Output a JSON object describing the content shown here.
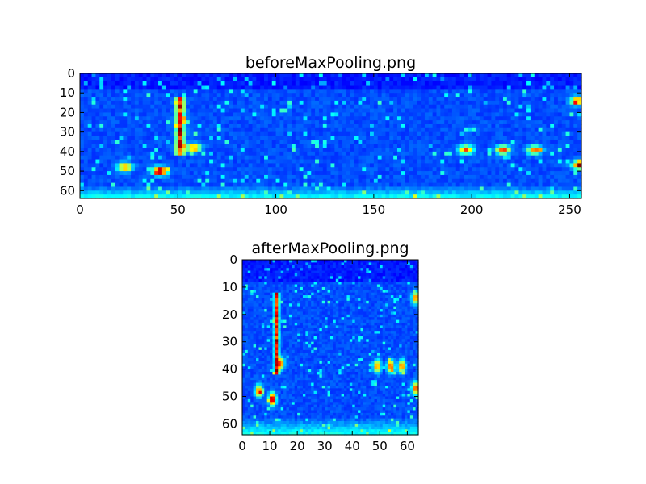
{
  "chart_data": [
    {
      "type": "heatmap",
      "title": "beforeMaxPooling.png",
      "xlabel": "",
      "ylabel": "",
      "xlim": [
        0,
        256
      ],
      "ylim": [
        64,
        0
      ],
      "xticks": [
        "0",
        "50",
        "100",
        "150",
        "200",
        "250"
      ],
      "yticks": [
        "0",
        "10",
        "20",
        "30",
        "40",
        "50",
        "60"
      ],
      "colormap": "jet",
      "grid": false,
      "features": [
        {
          "x": 51,
          "y_start": 12,
          "y_end": 42,
          "intensity": 0.75,
          "type": "vertical-line"
        },
        {
          "x": 41,
          "y": 50,
          "intensity": 0.85,
          "type": "blob"
        },
        {
          "x": 23,
          "y": 48,
          "intensity": 0.6,
          "type": "blob"
        },
        {
          "x": 58,
          "y": 38,
          "intensity": 0.6,
          "type": "blob"
        },
        {
          "x": 197,
          "y": 39,
          "intensity": 0.6,
          "type": "blob"
        },
        {
          "x": 216,
          "y": 39,
          "intensity": 0.65,
          "type": "blob"
        },
        {
          "x": 232,
          "y": 39,
          "intensity": 0.6,
          "type": "blob"
        },
        {
          "x": 254,
          "y": 14,
          "intensity": 0.6,
          "type": "blob"
        },
        {
          "x": 255,
          "y": 47,
          "intensity": 0.7,
          "type": "blob"
        }
      ]
    },
    {
      "type": "heatmap",
      "title": "afterMaxPooling.png",
      "xlabel": "",
      "ylabel": "",
      "xlim": [
        0,
        64
      ],
      "ylim": [
        64,
        0
      ],
      "xticks": [
        "0",
        "10",
        "20",
        "30",
        "40",
        "50",
        "60"
      ],
      "yticks": [
        "0",
        "10",
        "20",
        "30",
        "40",
        "50",
        "60"
      ],
      "colormap": "jet",
      "grid": false,
      "features": [
        {
          "x": 12.5,
          "y_start": 12,
          "y_end": 42,
          "intensity": 0.75,
          "type": "vertical-line"
        },
        {
          "x": 11,
          "y": 51,
          "intensity": 0.85,
          "type": "blob"
        },
        {
          "x": 6,
          "y": 48,
          "intensity": 0.6,
          "type": "blob"
        },
        {
          "x": 14,
          "y": 38,
          "intensity": 0.6,
          "type": "blob"
        },
        {
          "x": 49,
          "y": 39,
          "intensity": 0.6,
          "type": "blob"
        },
        {
          "x": 54,
          "y": 39,
          "intensity": 0.65,
          "type": "blob"
        },
        {
          "x": 58,
          "y": 39,
          "intensity": 0.6,
          "type": "blob"
        },
        {
          "x": 63,
          "y": 14,
          "intensity": 0.6,
          "type": "blob"
        },
        {
          "x": 63,
          "y": 47,
          "intensity": 0.7,
          "type": "blob"
        }
      ]
    }
  ]
}
